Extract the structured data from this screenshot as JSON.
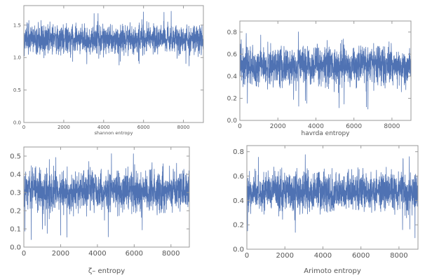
{
  "chart_data": [
    {
      "type": "line",
      "title": "",
      "xlabel": "shannon entropy",
      "ylabel": "",
      "xlim": [
        0,
        9000
      ],
      "ylim": [
        0.0,
        1.8
      ],
      "xticks": [
        0,
        2000,
        4000,
        6000,
        8000
      ],
      "yticks": [
        0.0,
        0.5,
        1.0,
        1.5
      ],
      "ytick_labels": [
        "0.0",
        "0.5",
        "1.0",
        "1.5"
      ],
      "grid": false,
      "color": "#4f72b3",
      "series": [
        {
          "mean": 1.28,
          "spread": 0.14,
          "min": 0.85,
          "max": 1.72,
          "n_points": 9000
        }
      ]
    },
    {
      "type": "line",
      "title": "",
      "xlabel": "havrda entropy",
      "ylabel": "",
      "xlim": [
        0,
        9000
      ],
      "ylim": [
        0.0,
        0.9
      ],
      "xticks": [
        0,
        2000,
        4000,
        6000,
        8000
      ],
      "yticks": [
        0.0,
        0.2,
        0.4,
        0.6,
        0.8
      ],
      "ytick_labels": [
        "0.0",
        "0.2",
        "0.4",
        "0.6",
        "0.8"
      ],
      "grid": false,
      "color": "#4f72b3",
      "series": [
        {
          "mean": 0.5,
          "spread": 0.11,
          "min": 0.07,
          "max": 0.83,
          "n_points": 9000
        }
      ]
    },
    {
      "type": "line",
      "title": "",
      "xlabel": "ζ– entropy",
      "ylabel": "",
      "xlim": [
        0,
        9000
      ],
      "ylim": [
        0.0,
        0.55
      ],
      "xticks": [
        0,
        2000,
        4000,
        6000,
        8000
      ],
      "yticks": [
        0.0,
        0.1,
        0.2,
        0.3,
        0.4,
        0.5
      ],
      "ytick_labels": [
        "0.0",
        "0.1",
        "0.2",
        "0.3",
        "0.4",
        "0.5"
      ],
      "grid": false,
      "color": "#4f72b3",
      "series": [
        {
          "mean": 0.31,
          "spread": 0.07,
          "min": 0.04,
          "max": 0.52,
          "n_points": 9000
        }
      ]
    },
    {
      "type": "line",
      "title": "",
      "xlabel": "Arimoto entropy",
      "ylabel": "",
      "xlim": [
        0,
        9000
      ],
      "ylim": [
        0.0,
        0.85
      ],
      "xticks": [
        0,
        2000,
        4000,
        6000,
        8000
      ],
      "yticks": [
        0.0,
        0.2,
        0.4,
        0.6,
        0.8
      ],
      "ytick_labels": [
        "0.0",
        "0.2",
        "0.4",
        "0.6",
        "0.8"
      ],
      "grid": false,
      "color": "#4f72b3",
      "series": [
        {
          "mean": 0.47,
          "spread": 0.1,
          "min": 0.05,
          "max": 0.8,
          "n_points": 9000
        }
      ]
    }
  ]
}
